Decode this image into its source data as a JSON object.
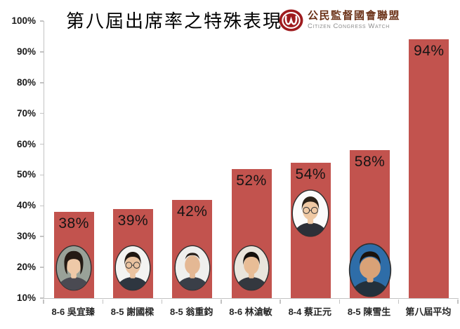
{
  "header": {
    "title": "第八屆出席率之特殊表現",
    "logo": {
      "org_zh": "公民監督國會聯盟",
      "org_en": "Citizen Congress Watch",
      "mark_color": "#9e1b1e"
    }
  },
  "chart_data": {
    "type": "bar",
    "title": "第八屆出席率之特殊表現",
    "categories": [
      "8-6 吳宜臻",
      "8-5 謝國樑",
      "8-5 翁重鈞",
      "8-6 林滄敏",
      "8-4 蔡正元",
      "8-5 陳雪生",
      "第八屆平均"
    ],
    "values": [
      38,
      39,
      42,
      52,
      54,
      58,
      94
    ],
    "value_labels": [
      "38%",
      "39%",
      "42%",
      "52%",
      "54%",
      "58%",
      "94%"
    ],
    "y_ticks": [
      10,
      20,
      30,
      40,
      50,
      60,
      70,
      80,
      90,
      100
    ],
    "y_tick_labels": [
      "10%",
      "20%",
      "30%",
      "40%",
      "50%",
      "60%",
      "70%",
      "80%",
      "90%",
      "100%"
    ],
    "ylim": [
      10,
      100
    ],
    "xlabel": "",
    "ylabel": "",
    "grid": false,
    "legend": false,
    "bar_color": "#c2534e",
    "axis_color": "#c3c3c3",
    "photos": [
      {
        "person": "吳宜臻",
        "present": true,
        "placement": "bottom",
        "style": "female",
        "bg": "#99a198",
        "hair": "#241a14",
        "skin": "#eec9a8",
        "suit": "#4a4a52",
        "glasses": false,
        "w": 52,
        "h": 66,
        "bottom": 10
      },
      {
        "person": "謝國樑",
        "present": true,
        "placement": "bottom",
        "style": "male",
        "bg": "#f3f3f1",
        "hair": "#1f1812",
        "skin": "#eac3a0",
        "suit": "#2e3640",
        "glasses": true,
        "w": 52,
        "h": 66,
        "bottom": 10
      },
      {
        "person": "翁重鈞",
        "present": true,
        "placement": "bottom",
        "style": "bald",
        "bg": "#efefed",
        "hair": "#2a211a",
        "skin": "#e4b894",
        "suit": "#3a3f48",
        "glasses": false,
        "w": 52,
        "h": 66,
        "bottom": 10
      },
      {
        "person": "林滄敏",
        "present": true,
        "placement": "bottom",
        "style": "male",
        "bg": "#e9e5dc",
        "hair": "#14100c",
        "skin": "#e8bd96",
        "suit": "#34383f",
        "glasses": false,
        "w": 52,
        "h": 66,
        "bottom": 10
      },
      {
        "person": "蔡正元",
        "present": true,
        "placement": "middle",
        "style": "male",
        "bg": "#fbfbfb",
        "hair": "#2a2118",
        "skin": "#efc9a4",
        "suit": "#2c3038",
        "glasses": true,
        "w": 54,
        "h": 72,
        "bottom": 85
      },
      {
        "person": "陳雪生",
        "present": true,
        "placement": "bottom",
        "style": "heavy",
        "bg": "#2e6da8",
        "hair": "#1a120c",
        "skin": "#d9a277",
        "suit": "#23303c",
        "glasses": false,
        "w": 62,
        "h": 78,
        "bottom": 1
      },
      {
        "person": "第八屆平均",
        "present": false
      }
    ]
  }
}
